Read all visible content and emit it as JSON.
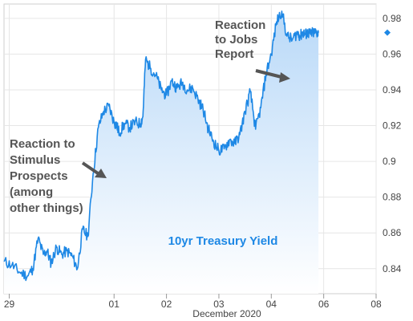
{
  "chart_data": {
    "type": "area",
    "xlabel": "December 2020",
    "ylabel": "",
    "x_ticks": [
      {
        "label": "29",
        "day": 29
      },
      {
        "label": "01",
        "day": 31
      },
      {
        "label": "02",
        "day": 32
      },
      {
        "label": "03",
        "day": 33
      },
      {
        "label": "04",
        "day": 34
      },
      {
        "label": "06",
        "day": 35
      },
      {
        "label": "08",
        "day": 36
      }
    ],
    "xlim": [
      28.9,
      36
    ],
    "y_ticks": [
      "0.84",
      "0.86",
      "0.88",
      "0.9",
      "0.92",
      "0.94",
      "0.96",
      "0.98"
    ],
    "ylim": [
      0.826,
      0.988
    ],
    "grid": true,
    "series_label": "10yr Treasury Yield",
    "last_value": 0.972,
    "line_color": "#1e88e5",
    "fill_color": "#cfe4fa",
    "annotations": [
      {
        "lines": [
          "Reaction to",
          "Stimulus",
          "Prospects",
          "(among",
          "other things)"
        ]
      },
      {
        "lines": [
          "Reaction",
          "to Jobs",
          "Report"
        ]
      }
    ],
    "series": {
      "x": [
        28.9,
        29.05,
        29.2,
        29.35,
        29.45,
        29.55,
        29.65,
        29.72,
        29.8,
        29.9,
        30.0,
        30.1,
        30.2,
        30.3,
        30.4,
        30.5,
        30.6,
        30.7,
        30.8,
        30.9,
        31.0,
        31.05,
        31.1,
        31.2,
        31.3,
        31.4,
        31.5,
        31.55,
        31.6,
        31.7,
        31.8,
        31.9,
        32.0,
        32.1,
        32.2,
        32.3,
        32.4,
        32.5,
        32.6,
        32.7,
        32.8,
        32.9,
        33.0,
        33.1,
        33.2,
        33.3,
        33.4,
        33.5,
        33.6,
        33.7,
        33.8,
        33.9,
        34.0,
        34.1,
        34.2,
        34.3,
        34.4,
        34.5,
        34.55,
        34.6,
        34.65,
        34.7,
        34.75,
        34.8,
        34.85,
        34.9
      ],
      "y": [
        0.844,
        0.842,
        0.838,
        0.836,
        0.84,
        0.857,
        0.848,
        0.85,
        0.843,
        0.852,
        0.848,
        0.85,
        0.847,
        0.84,
        0.862,
        0.858,
        0.893,
        0.919,
        0.928,
        0.931,
        0.922,
        0.92,
        0.916,
        0.921,
        0.919,
        0.922,
        0.921,
        0.925,
        0.957,
        0.952,
        0.948,
        0.94,
        0.937,
        0.945,
        0.941,
        0.944,
        0.94,
        0.941,
        0.935,
        0.929,
        0.918,
        0.911,
        0.906,
        0.907,
        0.912,
        0.91,
        0.915,
        0.928,
        0.939,
        0.918,
        0.93,
        0.949,
        0.96,
        0.978,
        0.984,
        0.97,
        0.968,
        0.972,
        0.97,
        0.972,
        0.971,
        0.972,
        0.971,
        0.972,
        0.972,
        0.972
      ]
    }
  }
}
